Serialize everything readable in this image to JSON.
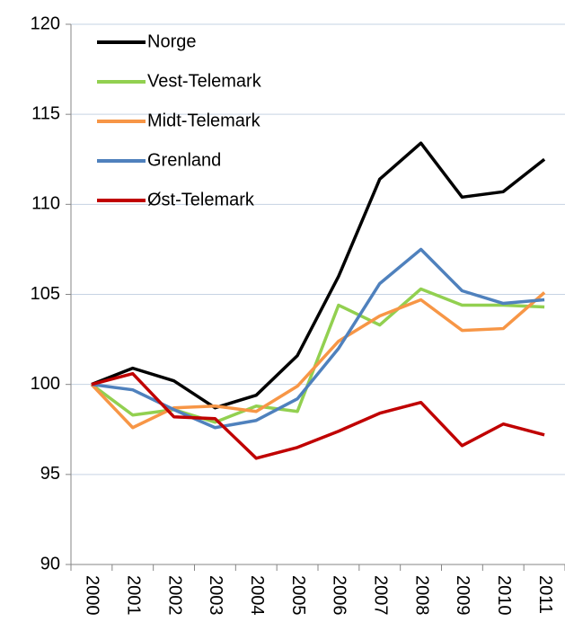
{
  "chart_data": {
    "type": "line",
    "categories": [
      "2000",
      "2001",
      "2002",
      "2003",
      "2004",
      "2005",
      "2006",
      "2007",
      "2008",
      "2009",
      "2010",
      "2011"
    ],
    "series": [
      {
        "name": "Norge",
        "color": "#000000",
        "values": [
          100,
          100.9,
          100.2,
          98.7,
          99.4,
          101.6,
          106,
          111.4,
          113.4,
          110.4,
          110.7,
          112.5
        ]
      },
      {
        "name": "Vest-Telemark",
        "color": "#92d050",
        "values": [
          100,
          98.3,
          98.6,
          97.9,
          98.8,
          98.5,
          104.4,
          103.3,
          105.3,
          104.4,
          104.4,
          104.3
        ]
      },
      {
        "name": "Midt-Telemark",
        "color": "#f79646",
        "values": [
          100,
          97.6,
          98.7,
          98.8,
          98.5,
          99.9,
          102.4,
          103.8,
          104.7,
          103,
          103.1,
          105.1
        ]
      },
      {
        "name": "Grenland",
        "color": "#4f81bd",
        "values": [
          100,
          99.7,
          98.6,
          97.6,
          98,
          99.2,
          102,
          105.6,
          107.5,
          105.2,
          104.5,
          104.7
        ]
      },
      {
        "name": "Øst-Telemark",
        "color": "#c00000",
        "values": [
          100,
          100.6,
          98.2,
          98.1,
          95.9,
          96.5,
          97.4,
          98.4,
          99,
          96.6,
          97.8,
          97.2
        ]
      }
    ],
    "ylim": [
      90,
      120
    ],
    "yticks": [
      90,
      95,
      100,
      105,
      110,
      115,
      120
    ],
    "grid": true,
    "legend": "upper left"
  }
}
